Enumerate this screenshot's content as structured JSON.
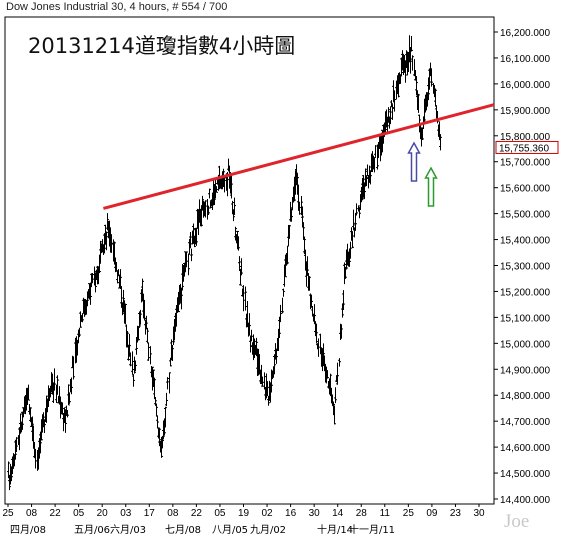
{
  "header": {
    "instrument": "Dow Jones Industrial 30",
    "info": ", 4 hours, # 554 / 700"
  },
  "annotation_title": "20131214道瓊指數4小時圖",
  "watermark": "Joe",
  "colors": {
    "trendline": "#e0242c",
    "price_bars": "#000000",
    "last_price_box": "#cc0000",
    "arrow_up_blue": "#4a4aa8",
    "arrow_up_green": "#2e9a2e",
    "background": "#ffffff",
    "axis": "#000000"
  },
  "chart_data": {
    "type": "ohlc-bar",
    "title": "Dow Jones Industrial 30 , 4 hours, # 554 / 700",
    "ylim": [
      14400,
      16250
    ],
    "y_ticks": [
      "14,400.000",
      "14,500.000",
      "14,600.000",
      "14,700.000",
      "14,800.000",
      "14,900.000",
      "15,000.000",
      "15,100.000",
      "15,200.000",
      "15,300.000",
      "15,400.000",
      "15,500.000",
      "15,600.000",
      "15,700.000",
      "15,800.000",
      "15,900.000",
      "16,000.000",
      "16,100.000",
      "16,200.000"
    ],
    "last_price": "15,755.360",
    "x_day_labels": [
      "25",
      "08",
      "22",
      "05",
      "20",
      "03",
      "17",
      "08",
      "22",
      "05",
      "19",
      "02",
      "16",
      "30",
      "14",
      "28",
      "11",
      "25",
      "09",
      "23",
      "30"
    ],
    "x_month_labels": [
      "四月/08",
      "五月/06",
      "六月/03",
      "七月/08",
      "八月/05",
      "九月/02",
      "十月/14",
      "十一月/11"
    ],
    "price_path": [
      {
        "t": 0,
        "v": 14470
      },
      {
        "t": 4,
        "v": 14800
      },
      {
        "t": 6,
        "v": 14560
      },
      {
        "t": 9,
        "v": 14870
      },
      {
        "t": 12,
        "v": 14700
      },
      {
        "t": 15,
        "v": 15100
      },
      {
        "t": 18,
        "v": 15250
      },
      {
        "t": 21,
        "v": 15450
      },
      {
        "t": 24,
        "v": 15150
      },
      {
        "t": 26,
        "v": 14880
      },
      {
        "t": 28,
        "v": 15200
      },
      {
        "t": 30,
        "v": 14850
      },
      {
        "t": 32,
        "v": 14570
      },
      {
        "t": 34,
        "v": 15000
      },
      {
        "t": 37,
        "v": 15300
      },
      {
        "t": 40,
        "v": 15500
      },
      {
        "t": 42,
        "v": 15550
      },
      {
        "t": 44,
        "v": 15620
      },
      {
        "t": 46,
        "v": 15650
      },
      {
        "t": 48,
        "v": 15350
      },
      {
        "t": 50,
        "v": 15050
      },
      {
        "t": 52,
        "v": 14950
      },
      {
        "t": 54,
        "v": 14790
      },
      {
        "t": 56,
        "v": 14990
      },
      {
        "t": 58,
        "v": 15350
      },
      {
        "t": 60,
        "v": 15680
      },
      {
        "t": 62,
        "v": 15300
      },
      {
        "t": 64,
        "v": 15050
      },
      {
        "t": 66,
        "v": 14900
      },
      {
        "t": 68,
        "v": 14730
      },
      {
        "t": 70,
        "v": 15250
      },
      {
        "t": 72,
        "v": 15450
      },
      {
        "t": 74,
        "v": 15600
      },
      {
        "t": 76,
        "v": 15700
      },
      {
        "t": 78,
        "v": 15800
      },
      {
        "t": 80,
        "v": 15920
      },
      {
        "t": 82,
        "v": 16060
      },
      {
        "t": 84,
        "v": 16120
      },
      {
        "t": 86,
        "v": 15800
      },
      {
        "t": 88,
        "v": 16050
      },
      {
        "t": 90,
        "v": 15760
      }
    ],
    "trendline": [
      {
        "t": 18,
        "v": 15520
      },
      {
        "t": 100,
        "v": 15920
      }
    ],
    "arrows": [
      {
        "color": "blue",
        "t": 83,
        "v": 15780
      },
      {
        "color": "green",
        "t": 87,
        "v": 15570
      }
    ]
  }
}
